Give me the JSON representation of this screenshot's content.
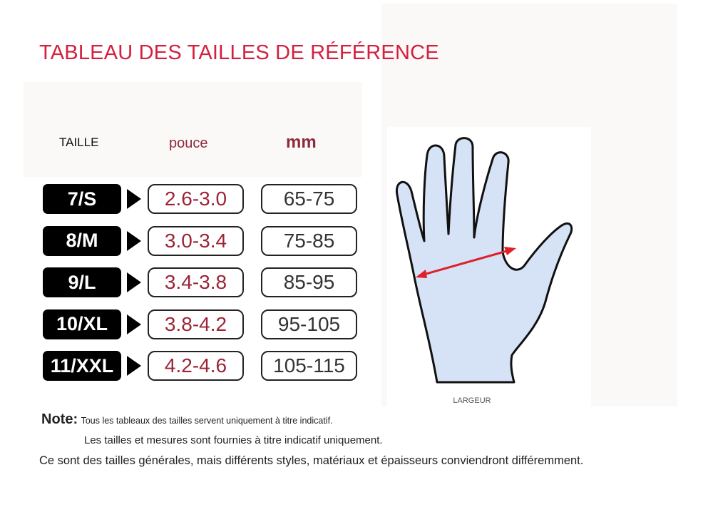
{
  "title": "TABLEAU DES TAILLES DE RÉFÉRENCE",
  "headers": {
    "size": "TAILLE",
    "inch": "pouce",
    "mm": "mm"
  },
  "rows": [
    {
      "size": "7/S",
      "inch": "2.6-3.0",
      "mm": "65-75"
    },
    {
      "size": "8/M",
      "inch": "3.0-3.4",
      "mm": "75-85"
    },
    {
      "size": "9/L",
      "inch": "3.4-3.8",
      "mm": "85-95"
    },
    {
      "size": "10/XL",
      "inch": "3.8-4.2",
      "mm": "95-105"
    },
    {
      "size": "11/XXL",
      "inch": "4.2-4.6",
      "mm": "105-115"
    }
  ],
  "diagram": {
    "label": "LARGEUR",
    "hand_color": "#d6e2f6",
    "arrow_color": "#e0202a"
  },
  "notes": {
    "label": "Note:",
    "line1": "Tous les tableaux des tailles servent uniquement à titre indicatif.",
    "line2": "Les tailles et mesures sont fournies à titre indicatif uniquement.",
    "line3": "Ce sont des tailles générales, mais différents styles, matériaux et épaisseurs conviendront différemment."
  },
  "colors": {
    "title": "#d4203f",
    "inch": "#9b2436"
  }
}
